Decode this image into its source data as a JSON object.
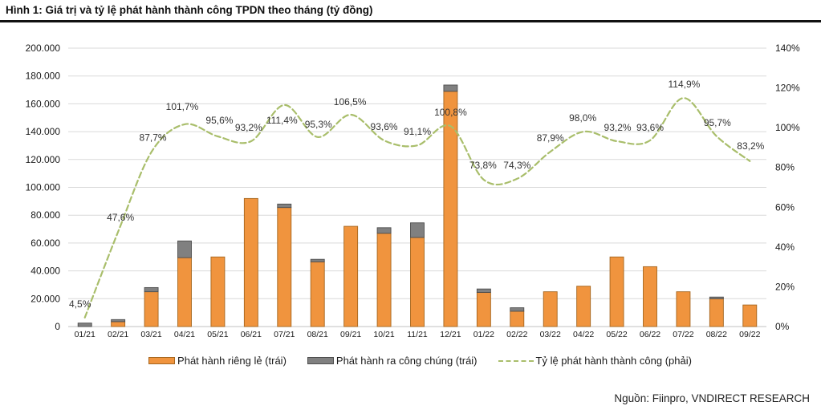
{
  "header": {
    "title": "Hình 1: Giá trị và tỷ lệ phát hành thành công TPDN theo tháng (tỷ đồng)"
  },
  "source": {
    "text": "Nguồn: Fiinpro, VNDIRECT RESEARCH"
  },
  "colors": {
    "private_fill": "#F0943E",
    "private_border": "#A5661F",
    "public_fill": "#808080",
    "public_border": "#4D4D4D",
    "rate_line": "#A9BE6B",
    "grid": "#D9D9D9",
    "axis_line": "#C0C0C0",
    "text": "#1a1a1a",
    "label_text": "#333333"
  },
  "legend": {
    "items": [
      {
        "label": "Phát hành riêng lẻ (trái)",
        "swatch": "orange-rect"
      },
      {
        "label": "Phát hành ra công chúng (trái)",
        "swatch": "gray-rect"
      },
      {
        "label": "Tỷ lệ phát hành thành công (phải)",
        "swatch": "dashed-line"
      }
    ]
  },
  "chart_data": {
    "type": "bar",
    "subtype": "stacked-bars-with-line-combo",
    "title": "Giá trị và tỷ lệ phát hành thành công TPDN theo tháng (tỷ đồng)",
    "categories": [
      "01/21",
      "02/21",
      "03/21",
      "04/21",
      "05/21",
      "06/21",
      "07/21",
      "08/21",
      "09/21",
      "10/21",
      "11/21",
      "12/21",
      "01/22",
      "02/22",
      "03/22",
      "04/22",
      "05/22",
      "06/22",
      "07/22",
      "08/22",
      "09/22"
    ],
    "series": [
      {
        "name": "Phát hành riêng lẻ (trái)",
        "type": "bar",
        "axis": "left",
        "values": [
          0,
          3500,
          25000,
          49500,
          50000,
          92000,
          85500,
          46500,
          72000,
          67000,
          64000,
          169000,
          24500,
          11000,
          25000,
          29000,
          50000,
          43000,
          25000,
          20000,
          15500
        ]
      },
      {
        "name": "Phát hành ra công chúng (trái)",
        "type": "bar",
        "axis": "left",
        "values": [
          2500,
          1500,
          3000,
          12000,
          0,
          0,
          2500,
          1800,
          0,
          4000,
          10500,
          4500,
          2500,
          2500,
          0,
          0,
          0,
          0,
          0,
          1200,
          0
        ]
      },
      {
        "name": "Tỷ lệ phát hành thành công (phải)",
        "type": "line",
        "axis": "right",
        "style": "dashed-smooth",
        "values": [
          4.5,
          47.6,
          87.7,
          101.7,
          95.6,
          93.2,
          111.4,
          95.3,
          106.5,
          93.6,
          91.1,
          100.8,
          73.8,
          74.3,
          87.9,
          98.0,
          93.2,
          93.6,
          114.9,
          95.7,
          83.2
        ],
        "point_labels": [
          "4,5%",
          "47,6%",
          "87,7%",
          "101,7%",
          "95,6%",
          "93,2%",
          "111,4%",
          "95,3%",
          "106,5%",
          "93,6%",
          "91,1%",
          "100,8%",
          "73,8%",
          "74,3%",
          "87,9%",
          "98,0%",
          "93,2%",
          "93,6%",
          "114,9%",
          "95,7%",
          "83,2%"
        ]
      }
    ],
    "left_axis": {
      "min": 0,
      "max": 200000,
      "ticks": [
        "0",
        "20.000",
        "40.000",
        "60.000",
        "80.000",
        "100.000",
        "120.000",
        "140.000",
        "160.000",
        "180.000",
        "200.000"
      ]
    },
    "right_axis": {
      "min": 0,
      "max": 140,
      "ticks": [
        "0%",
        "20%",
        "40%",
        "60%",
        "80%",
        "100%",
        "120%",
        "140%"
      ]
    },
    "grid": "horizontal-only",
    "legend_position": "bottom"
  }
}
